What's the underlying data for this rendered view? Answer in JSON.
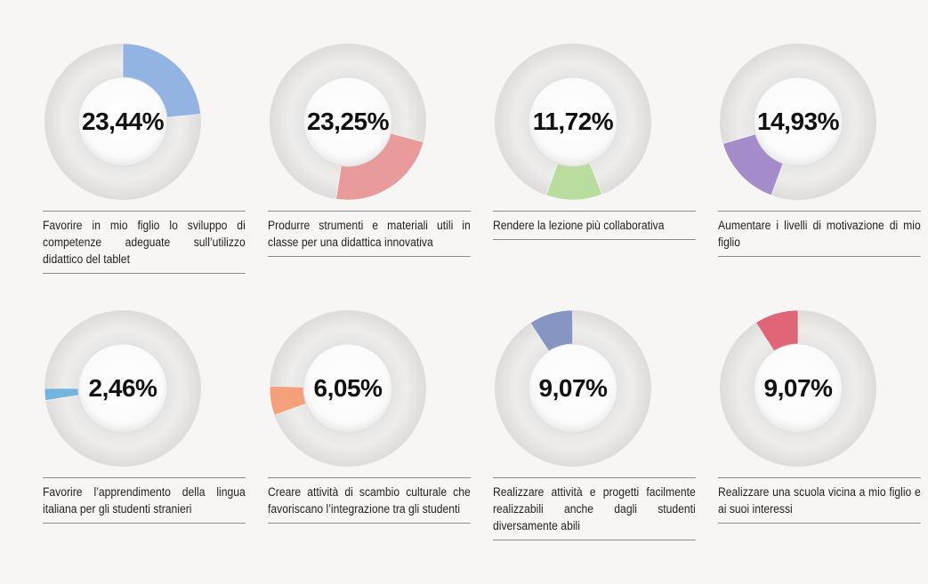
{
  "chart_data": [
    {
      "type": "pie",
      "value": 23.44,
      "label": "23,44%",
      "color": "#93b4e3",
      "caption": "Favorire in mio figlio lo sviluppo di competenze adeguate sull’utilizzo didattico del tablet"
    },
    {
      "type": "pie",
      "value": 23.25,
      "label": "23,25%",
      "color": "#e99a9a",
      "caption": "Produrre strumenti e materiali utili in classe per una didattica innovativa"
    },
    {
      "type": "pie",
      "value": 11.72,
      "label": "11,72%",
      "color": "#b8dd9f",
      "caption": "Rendere la lezione più collaborativa"
    },
    {
      "type": "pie",
      "value": 14.93,
      "label": "14,93%",
      "color": "#a38cc9",
      "caption": "Aumentare i livelli di motivazione di mio figlio"
    },
    {
      "type": "pie",
      "value": 2.46,
      "label": "2,46%",
      "color": "#74b4dd",
      "caption": "Favorire l’apprendimento della lingua italiana per gli studenti stranieri"
    },
    {
      "type": "pie",
      "value": 6.05,
      "label": "6,05%",
      "color": "#f4a07a",
      "caption": "Creare attività di scambio culturale che favoriscano l’integrazione tra gli studenti"
    },
    {
      "type": "pie",
      "value": 9.07,
      "label": "9,07%",
      "color": "#8695c2",
      "caption": "Realizzare attività e progetti facilmente realizzabili anche dagli studenti diversamente abili"
    },
    {
      "type": "pie",
      "value": 9.07,
      "label": "9,07%",
      "color": "#e06677",
      "caption": "Realizzare una scuola vicina a mio figlio e ai suoi interessi"
    }
  ]
}
